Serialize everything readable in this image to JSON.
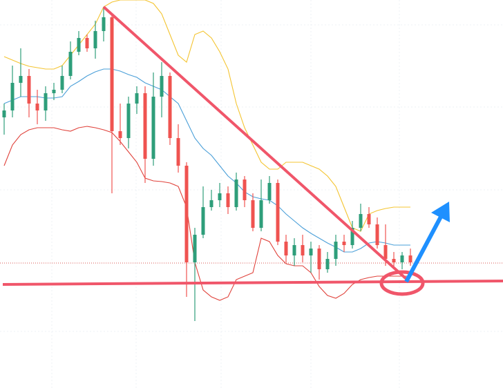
{
  "chart_data": {
    "type": "candlestick",
    "ylim": [
      38,
      600
    ],
    "up_color": "#2e9e7a",
    "down_color": "#ef5350",
    "open": [
      430,
      440,
      480,
      490,
      450,
      440,
      465,
      470,
      490,
      525,
      545,
      530,
      555,
      575,
      410,
      400,
      450,
      465,
      370,
      460,
      490,
      400,
      360,
      220,
      260,
      300,
      310,
      320,
      300,
      340,
      310,
      270,
      310,
      335,
      250,
      230,
      245,
      230,
      240,
      210,
      225,
      250,
      245,
      270,
      290,
      275,
      245,
      225,
      220,
      230
    ],
    "high": [
      450,
      505,
      530,
      500,
      470,
      475,
      480,
      505,
      540,
      555,
      550,
      570,
      590,
      580,
      450,
      460,
      475,
      475,
      495,
      510,
      495,
      420,
      365,
      270,
      330,
      325,
      335,
      330,
      350,
      345,
      320,
      340,
      345,
      340,
      260,
      255,
      260,
      250,
      245,
      235,
      260,
      260,
      280,
      305,
      300,
      285,
      275,
      235,
      235,
      240
    ],
    "low": [
      405,
      430,
      460,
      430,
      420,
      425,
      455,
      465,
      485,
      520,
      525,
      515,
      540,
      320,
      390,
      385,
      435,
      335,
      360,
      430,
      390,
      350,
      170,
      135,
      255,
      295,
      300,
      290,
      295,
      300,
      265,
      265,
      305,
      245,
      220,
      215,
      220,
      205,
      195,
      205,
      215,
      235,
      240,
      265,
      270,
      240,
      215,
      210,
      210,
      215
    ],
    "close": [
      440,
      480,
      490,
      450,
      440,
      465,
      470,
      490,
      525,
      545,
      530,
      555,
      575,
      410,
      400,
      450,
      465,
      370,
      460,
      490,
      400,
      360,
      220,
      260,
      300,
      310,
      320,
      300,
      340,
      310,
      270,
      310,
      335,
      250,
      230,
      245,
      230,
      240,
      210,
      225,
      250,
      245,
      270,
      290,
      275,
      245,
      225,
      220,
      230,
      220
    ],
    "lines": [
      {
        "color": "#f4c430",
        "values": [
          518,
          513,
          508,
          504,
          502,
          500,
          500,
          505,
          520,
          535,
          550,
          565,
          590,
          597,
          600,
          600,
          600,
          600,
          595,
          580,
          550,
          520,
          510,
          550,
          555,
          545,
          525,
          500,
          450,
          415,
          390,
          365,
          355,
          355,
          365,
          365,
          365,
          360,
          355,
          345,
          330,
          300,
          270,
          265,
          290,
          295,
          298,
          300,
          300,
          300
        ]
      },
      {
        "color": "#4a9fd8",
        "values": [
          450,
          455,
          460,
          460,
          460,
          458,
          458,
          460,
          475,
          482,
          490,
          496,
          500,
          500,
          497,
          492,
          488,
          480,
          475,
          470,
          460,
          450,
          425,
          400,
          385,
          375,
          360,
          345,
          335,
          322,
          315,
          312,
          310,
          302,
          290,
          280,
          270,
          262,
          255,
          248,
          242,
          235,
          235,
          240,
          248,
          250,
          248,
          245,
          245,
          245
        ]
      },
      {
        "color": "#e0413a",
        "values": [
          360,
          390,
          405,
          412,
          415,
          415,
          415,
          412,
          410,
          415,
          417,
          415,
          412,
          408,
          395,
          380,
          365,
          342,
          338,
          337,
          335,
          330,
          300,
          220,
          180,
          170,
          165,
          170,
          195,
          200,
          205,
          255,
          250,
          230,
          218,
          215,
          215,
          205,
          185,
          172,
          168,
          175,
          188,
          195,
          198,
          200,
          200,
          200,
          200,
          200
        ]
      }
    ]
  }
}
